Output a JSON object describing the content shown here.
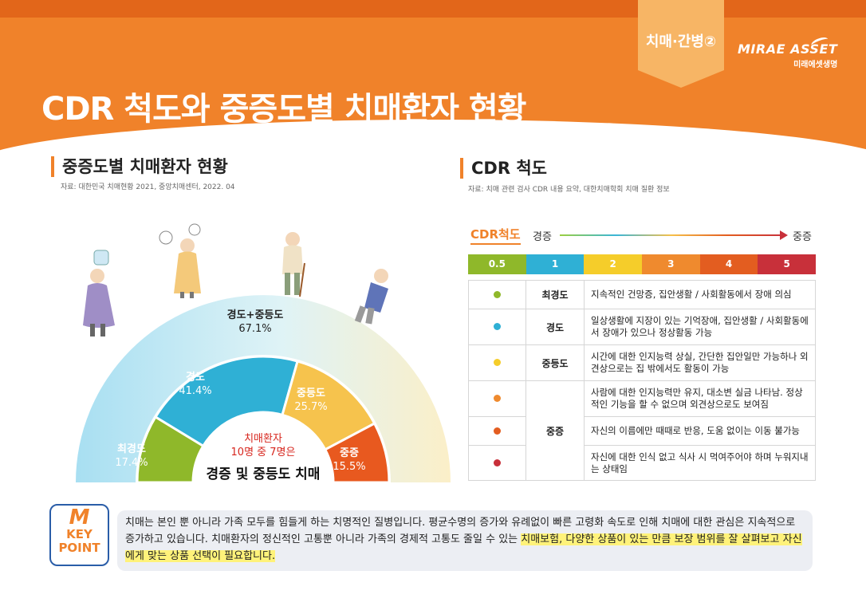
{
  "header": {
    "title": "CDR 척도와 중증도별 치매환자 현황",
    "tag": "치매·간병②",
    "logo_en": "MIRAE ASSET",
    "logo_ko": "미래에셋생명"
  },
  "left_section": {
    "title": "중증도별 치매환자 현황",
    "source": "자료: 대한민국 치매현황 2021, 중앙치매센터, 2022. 04"
  },
  "right_section": {
    "title": "CDR 척도",
    "source": "자료: 치매 관련 검사 CDR 내용 요약, 대한치매학회 치매 질환 정보"
  },
  "chart_data": {
    "type": "pie",
    "segments": [
      {
        "name": "최경도",
        "value": 17.4,
        "label": "17.4%",
        "color": "#8fb82a"
      },
      {
        "name": "경도",
        "value": 41.4,
        "label": "41.4%",
        "color": "#2fb0d5"
      },
      {
        "name": "중등도",
        "value": 25.7,
        "label": "25.7%",
        "color": "#f6c34d"
      },
      {
        "name": "중증",
        "value": 15.5,
        "label": "15.5%",
        "color": "#e8591f"
      }
    ],
    "outer": {
      "name": "경도+중등도",
      "value": 67.1,
      "label": "67.1%",
      "color": "#a8dff2"
    },
    "center_line1": "치매환자",
    "center_line2": "10명 중 7명은",
    "center_line3": "경증 및 중등도 치매"
  },
  "cdr_scale": {
    "label": "CDR척도",
    "mild": "경증",
    "severe": "중증",
    "levels": [
      {
        "value": "0.5",
        "color": "#8fb82a"
      },
      {
        "value": "1",
        "color": "#2fb0d5"
      },
      {
        "value": "2",
        "color": "#f5cd2a"
      },
      {
        "value": "3",
        "color": "#ef8a2e"
      },
      {
        "value": "4",
        "color": "#e35d20"
      },
      {
        "value": "5",
        "color": "#c8303a"
      }
    ]
  },
  "cdr_table": {
    "rows": [
      {
        "level": "최경도",
        "dot": "#8fb82a",
        "desc": "지속적인 건망증, 집안생활 / 사회활동에서 장애 의심"
      },
      {
        "level": "경도",
        "dot": "#2fb0d5",
        "desc": "일상생활에 지장이 있는 기억장애, 집안생활 / 사회활동에서 장애가 있으나 정상활동 가능"
      },
      {
        "level": "중등도",
        "dot": "#f5cd2a",
        "desc": "시간에 대한 인지능력 상실, 간단한 집안일만 가능하나 외견상으로는 집 밖에서도 활동이 가능"
      },
      {
        "level": "중증",
        "dot": "#ef8a2e",
        "desc": "사람에 대한 인지능력만 유지, 대소변 실금 나타남. 정상적인 기능을 할 수 없으며 외견상으로도 보여짐"
      },
      {
        "level": "",
        "dot": "#e35d20",
        "desc": "자신의 이름에만 때때로 반응, 도움 없이는 이동 불가능"
      },
      {
        "level": "",
        "dot": "#c8303a",
        "desc": "자신에 대한 인식 없고 식사 시 먹여주어야 하며 누워지내는 상태임"
      }
    ]
  },
  "key_point": {
    "m": "M",
    "key": "KEY",
    "point": "POINT",
    "text_plain": "치매는 본인 뿐 아니라 가족 모두를 힘들게 하는 치명적인 질병입니다. 평균수명의 증가와 유례없이 빠른 고령화 속도로 인해 치매에 대한 관심은 지속적으로 증가하고 있습니다. 치매환자의 정신적인 고통뿐 아니라 가족의 경제적 고통도 줄일 수 있는 ",
    "text_highlight": "치매보험, 다양한 상품이 있는 만큼 보장 범위를 잘 살펴보고 자신에게 맞는 상품 선택이 필요합니다."
  }
}
